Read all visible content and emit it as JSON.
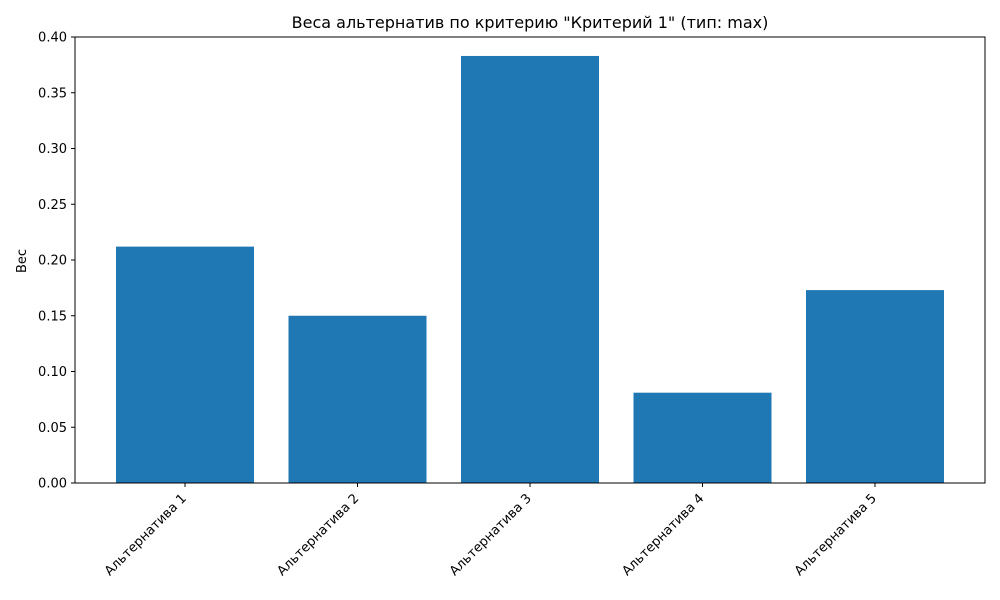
{
  "chart_data": {
    "type": "bar",
    "title": "Веса альтернатив по критерию \"Критерий 1\" (тип: max)",
    "xlabel": "",
    "ylabel": "Вес",
    "categories": [
      "Альтернатива 1",
      "Альтернатива 2",
      "Альтернатива 3",
      "Альтернатива 4",
      "Альтернатива 5"
    ],
    "values": [
      0.212,
      0.15,
      0.383,
      0.081,
      0.173
    ],
    "ylim": [
      0,
      0.4
    ],
    "yticks": [
      "0.00",
      "0.05",
      "0.10",
      "0.15",
      "0.20",
      "0.25",
      "0.30",
      "0.35",
      "0.40"
    ],
    "grid": false,
    "bar_color": "#1f77b4"
  }
}
